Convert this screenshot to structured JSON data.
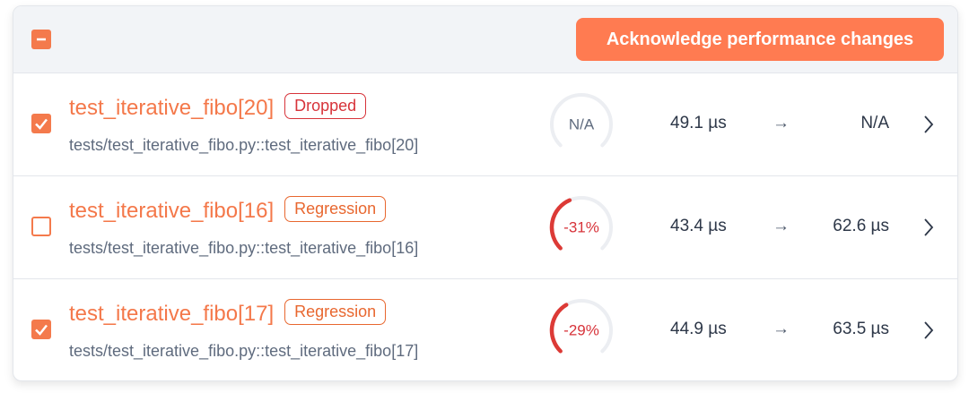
{
  "header": {
    "button": "Acknowledge performance changes"
  },
  "rows": [
    {
      "checked": true,
      "name": "test_iterative_fibo[20]",
      "status": "Dropped",
      "status_color": "#d7333a",
      "path": "tests/test_iterative_fibo.py::test_iterative_fibo[20]",
      "change": {
        "value": null,
        "label": "N/A"
      },
      "before": "49.1 µs",
      "arrow": "→",
      "after": "N/A"
    },
    {
      "checked": false,
      "name": "test_iterative_fibo[16]",
      "status": "Regression",
      "status_color": "#e8672f",
      "path": "tests/test_iterative_fibo.py::test_iterative_fibo[16]",
      "change": {
        "value": -31,
        "label": "-31%"
      },
      "before": "43.4 µs",
      "arrow": "→",
      "after": "62.6 µs"
    },
    {
      "checked": true,
      "name": "test_iterative_fibo[17]",
      "status": "Regression",
      "status_color": "#e8672f",
      "path": "tests/test_iterative_fibo.py::test_iterative_fibo[17]",
      "change": {
        "value": -29,
        "label": "-29%"
      },
      "before": "44.9 µs",
      "arrow": "→",
      "after": "63.5 µs"
    }
  ]
}
